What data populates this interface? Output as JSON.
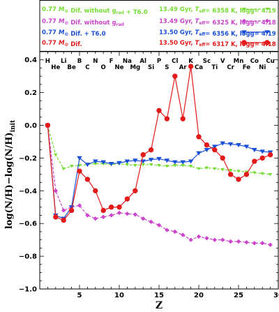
{
  "chart_data": {
    "type": "line",
    "xlabel": "Z",
    "ylabel_main": "log(N/H)−log(N/H)",
    "ylabel_sub": "init",
    "xlim": [
      0,
      30
    ],
    "ylim": [
      -1.0,
      0.45
    ],
    "xticks": [
      5,
      10,
      15,
      20,
      25,
      30
    ],
    "yticks": [
      -1.0,
      -0.8,
      -0.6,
      -0.4,
      -0.2,
      0.0,
      0.2,
      0.4
    ],
    "ytick_labels": [
      "−1.0",
      "−0.8",
      "−0.6",
      "−0.4",
      "−0.2",
      "0.0",
      "0.2",
      "0.4"
    ],
    "elements": [
      {
        "symbol": "H",
        "z": 1,
        "row": "top"
      },
      {
        "symbol": "He",
        "z": 2,
        "row": "bottom"
      },
      {
        "symbol": "Li",
        "z": 3,
        "row": "top"
      },
      {
        "symbol": "Be",
        "z": 4,
        "row": "bottom"
      },
      {
        "symbol": "B",
        "z": 5,
        "row": "top"
      },
      {
        "symbol": "C",
        "z": 6,
        "row": "bottom"
      },
      {
        "symbol": "N",
        "z": 7,
        "row": "top"
      },
      {
        "symbol": "O",
        "z": 8,
        "row": "bottom"
      },
      {
        "symbol": "F",
        "z": 9,
        "row": "top"
      },
      {
        "symbol": "Ne",
        "z": 10,
        "row": "bottom"
      },
      {
        "symbol": "Na",
        "z": 11,
        "row": "top"
      },
      {
        "symbol": "Mg",
        "z": 12,
        "row": "bottom"
      },
      {
        "symbol": "Al",
        "z": 13,
        "row": "top"
      },
      {
        "symbol": "Si",
        "z": 14,
        "row": "bottom"
      },
      {
        "symbol": "P",
        "z": 15,
        "row": "top"
      },
      {
        "symbol": "S",
        "z": 16,
        "row": "bottom"
      },
      {
        "symbol": "Cl",
        "z": 17,
        "row": "top"
      },
      {
        "symbol": "Ar",
        "z": 18,
        "row": "bottom"
      },
      {
        "symbol": "K",
        "z": 19,
        "row": "top"
      },
      {
        "symbol": "Ca",
        "z": 20,
        "row": "bottom"
      },
      {
        "symbol": "Sc",
        "z": 21,
        "row": "top"
      },
      {
        "symbol": "Ti",
        "z": 22,
        "row": "bottom"
      },
      {
        "symbol": "V",
        "z": 23,
        "row": "top"
      },
      {
        "symbol": "Cr",
        "z": 24,
        "row": "bottom"
      },
      {
        "symbol": "Mn",
        "z": 25,
        "row": "top"
      },
      {
        "symbol": "Fe",
        "z": 26,
        "row": "bottom"
      },
      {
        "symbol": "Co",
        "z": 27,
        "row": "top"
      },
      {
        "symbol": "Ni",
        "z": 28,
        "row": "bottom"
      },
      {
        "symbol": "Cu",
        "z": 29,
        "row": "top"
      }
    ],
    "legend": [
      {
        "model": "0.77 M⊙ Dif. without g_rad + T6.0",
        "info": "13.49 Gyr, T_eff= 6358 K, logg= 4.19"
      },
      {
        "model": "0.77 M⊙ Dif. without g_rad",
        "info": "13.49 Gyr, T_eff= 6325 K, logg= 4.18"
      },
      {
        "model": "0.77 M⊙ Dif. + T6.0",
        "info": "13.50 Gyr, T_eff= 6356 K, logg= 4.19"
      },
      {
        "model": "0.77 M⊙ Dif.",
        "info": "13.50 Gyr, T_eff= 6317 K, logg= 4.18"
      }
    ],
    "series": [
      {
        "name": "0.77 M⊙ Dif. without g_rad + T6.0",
        "color": "#77dd33",
        "marker": "triangle-down-small",
        "dash": "4,2",
        "x": [
          1,
          2,
          3,
          4,
          5,
          6,
          7,
          8,
          9,
          10,
          11,
          12,
          13,
          14,
          15,
          16,
          17,
          18,
          19,
          20,
          21,
          22,
          23,
          24,
          25,
          26,
          27,
          28,
          29
        ],
        "y": [
          0.0,
          -0.18,
          -0.265,
          -0.25,
          -0.245,
          -0.24,
          -0.235,
          -0.235,
          -0.24,
          -0.235,
          -0.24,
          -0.245,
          -0.24,
          -0.24,
          -0.245,
          -0.25,
          -0.245,
          -0.245,
          -0.25,
          -0.265,
          -0.26,
          -0.265,
          -0.27,
          -0.275,
          -0.28,
          -0.285,
          -0.29,
          -0.295,
          -0.3
        ]
      },
      {
        "name": "0.77 M⊙ Dif. without g_rad",
        "color": "#cc44cc",
        "marker": "diamond",
        "dash": "4,2",
        "x": [
          1,
          2,
          3,
          4,
          5,
          6,
          7,
          8,
          9,
          10,
          11,
          12,
          13,
          14,
          15,
          16,
          17,
          18,
          19,
          20,
          21,
          22,
          23,
          24,
          25,
          26,
          27,
          28,
          29
        ],
        "y": [
          0.0,
          -0.4,
          -0.52,
          -0.5,
          -0.49,
          -0.55,
          -0.57,
          -0.56,
          -0.55,
          -0.535,
          -0.54,
          -0.545,
          -0.57,
          -0.59,
          -0.61,
          -0.64,
          -0.65,
          -0.67,
          -0.7,
          -0.68,
          -0.69,
          -0.7,
          -0.7,
          -0.71,
          -0.71,
          -0.715,
          -0.72,
          -0.72,
          -0.73
        ]
      },
      {
        "name": "0.77 M⊙ Dif. + T6.0",
        "color": "#1a4fd8",
        "marker": "triangle-down",
        "dash": "",
        "x": [
          1,
          2,
          3,
          4,
          5,
          6,
          7,
          8,
          9,
          10,
          11,
          12,
          13,
          14,
          15,
          16,
          17,
          18,
          19,
          20,
          21,
          22,
          23,
          24,
          25,
          26,
          27,
          28,
          29
        ],
        "y": [
          0.0,
          -0.55,
          -0.57,
          -0.5,
          -0.2,
          -0.24,
          -0.22,
          -0.225,
          -0.235,
          -0.23,
          -0.22,
          -0.215,
          -0.22,
          -0.21,
          -0.205,
          -0.215,
          -0.225,
          -0.225,
          -0.22,
          -0.17,
          -0.15,
          -0.13,
          -0.11,
          -0.115,
          -0.12,
          -0.13,
          -0.15,
          -0.16,
          -0.165
        ]
      },
      {
        "name": "0.77 M⊙ Dif.",
        "color": "#e31a1a",
        "marker": "circle",
        "dash": "",
        "x": [
          1,
          2,
          3,
          4,
          5,
          6,
          7,
          8,
          9,
          10,
          11,
          12,
          13,
          14,
          15,
          16,
          17,
          18,
          19,
          20,
          21,
          22,
          23,
          24,
          25,
          26,
          27,
          28,
          29
        ],
        "y": [
          0.0,
          -0.56,
          -0.58,
          -0.52,
          -0.28,
          -0.33,
          -0.4,
          -0.52,
          -0.5,
          -0.5,
          -0.45,
          -0.4,
          -0.18,
          -0.15,
          0.09,
          0.04,
          0.3,
          0.04,
          0.36,
          -0.07,
          -0.12,
          -0.15,
          -0.2,
          -0.3,
          -0.33,
          -0.3,
          -0.22,
          -0.2,
          -0.18
        ]
      }
    ]
  }
}
